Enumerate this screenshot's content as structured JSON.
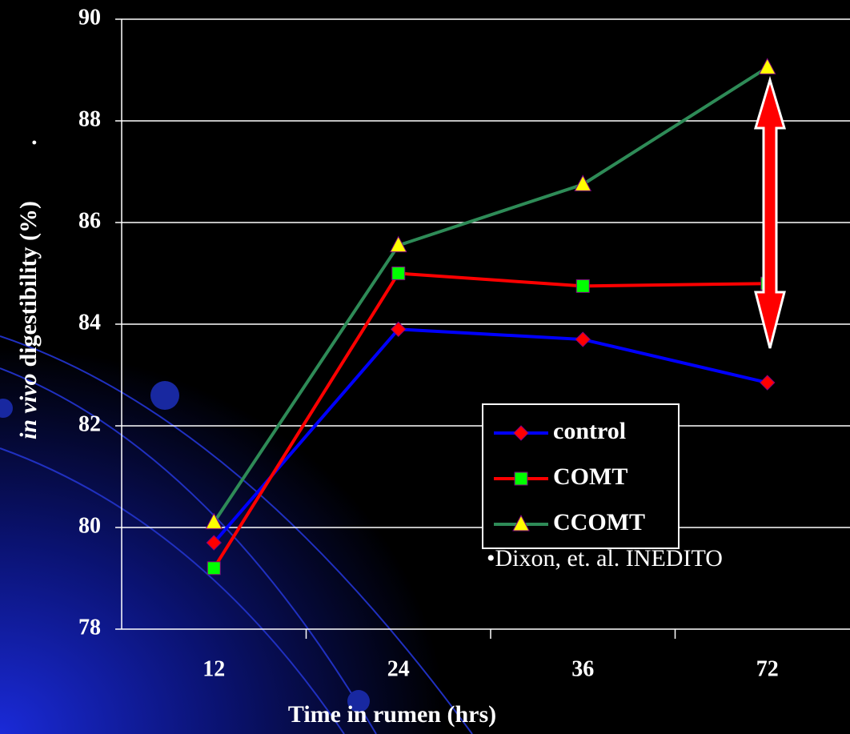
{
  "chart_data": {
    "type": "line",
    "y_label_italic": "in vivo",
    "y_label_rest": "digestibility (%)",
    "y_label_suffix": ".",
    "x_label": "Time in rumen (hrs)",
    "annotation": "•Dixon, et. al. INEDITO",
    "categories": [
      "12",
      "24",
      "36",
      "72"
    ],
    "ylim": [
      78,
      90
    ],
    "yticks": [
      78,
      80,
      82,
      84,
      86,
      88,
      90
    ],
    "grid": true,
    "legend": "lower-right",
    "series": [
      {
        "name": "control",
        "color": "#0000ff",
        "marker": "diamond",
        "marker_color": "#ff0000",
        "values": [
          79.7,
          83.9,
          83.7,
          82.85
        ]
      },
      {
        "name": "COMT",
        "color": "#ff0000",
        "marker": "square",
        "marker_color": "#00ff00",
        "values": [
          79.2,
          85.0,
          84.75,
          84.8
        ]
      },
      {
        "name": "CCOMT",
        "color": "#2e8b57",
        "marker": "triangle",
        "marker_color": "#ffff00",
        "values": [
          80.1,
          85.55,
          86.75,
          89.05
        ]
      }
    ]
  }
}
